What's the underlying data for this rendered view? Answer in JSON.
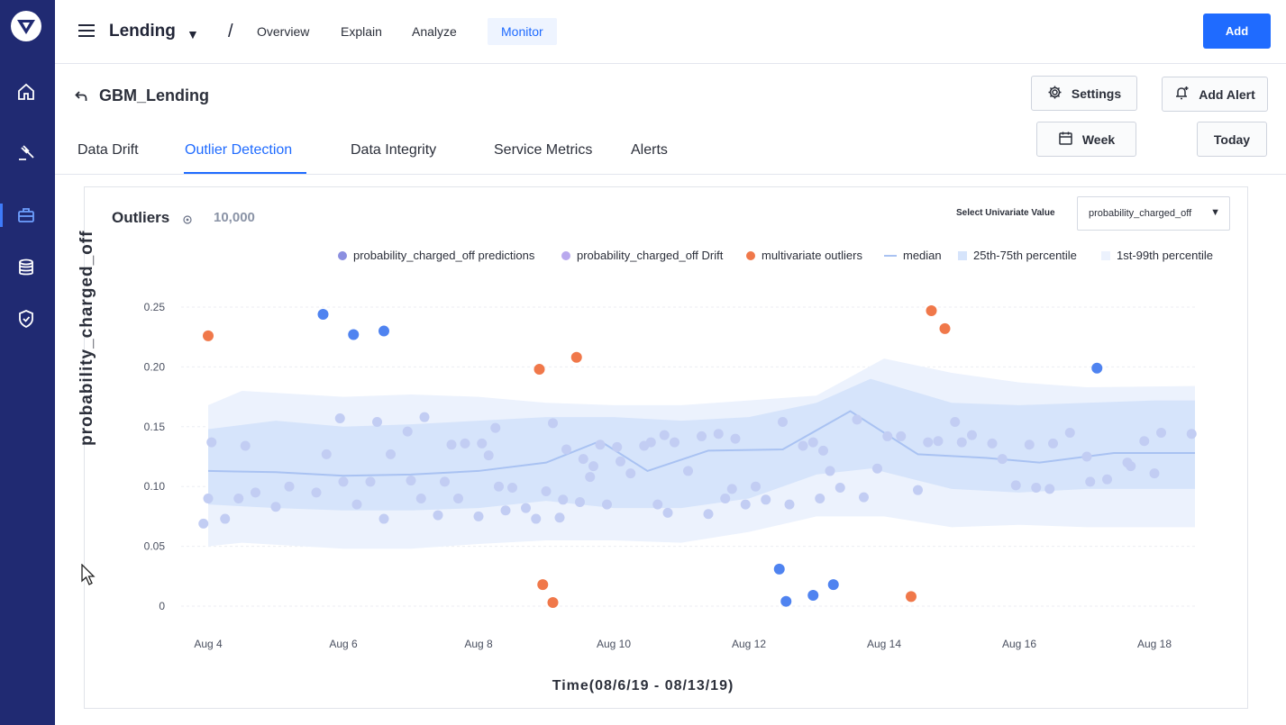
{
  "sidebar": {
    "logo": "logo-icon",
    "items": [
      {
        "icon": "home-icon",
        "active": false
      },
      {
        "icon": "gavel-icon",
        "active": false
      },
      {
        "icon": "briefcase-icon",
        "active": true
      },
      {
        "icon": "database-icon",
        "active": false
      },
      {
        "icon": "shield-icon",
        "active": false
      }
    ]
  },
  "header": {
    "project": "Lending",
    "separator": "/",
    "nav": [
      "Overview",
      "Explain",
      "Analyze",
      "Monitor"
    ],
    "active_nav": "Monitor",
    "add_label": "Add"
  },
  "model": {
    "title": "GBM_Lending",
    "settings_label": "Settings",
    "add_alert_label": "Add Alert",
    "week_label": "Week",
    "today_label": "Today"
  },
  "tabs": [
    "Data Drift",
    "Outlier Detection",
    "Data Integrity",
    "Service Metrics",
    "Alerts"
  ],
  "active_tab": "Outlier Detection",
  "panel": {
    "title": "Outliers",
    "count": "10,000",
    "select_label": "Select Univariate Value",
    "select_value": "probability_charged_off"
  },
  "colors": {
    "accent": "#1f6bff",
    "sidebar": "#202a72",
    "predictions": "#c2cdf3",
    "drift": "#4f83f0",
    "multivariate": "#f0784a",
    "median": "#a9c2f2",
    "band_25_75": "#d6e4fb",
    "band_1_99": "#ecf2fd"
  },
  "chart_data": {
    "type": "scatter",
    "xlabel": "Time(08/6/19 - 08/13/19)",
    "ylabel": "probability_charged_off",
    "ylim": [
      0,
      0.25
    ],
    "yticks": [
      0,
      0.05,
      0.1,
      0.15,
      0.2,
      0.25
    ],
    "ytick_labels": [
      "0",
      "0.05",
      "0.10",
      "0.15",
      "0.20",
      "0.25"
    ],
    "xlim": [
      3.6,
      18.6
    ],
    "xticks": [
      4,
      6,
      8,
      10,
      12,
      14,
      16,
      18
    ],
    "xtick_labels": [
      "Aug 4",
      "Aug 6",
      "Aug 8",
      "Aug 10",
      "Aug 12",
      "Aug 14",
      "Aug 16",
      "Aug 18"
    ],
    "legend": [
      {
        "name": "probability_charged_off predictions",
        "kind": "dot",
        "color": "#8b8fe0"
      },
      {
        "name": "probability_charged_off Drift",
        "kind": "dot",
        "color": "#b9a9ee"
      },
      {
        "name": "multivariate outliers",
        "kind": "dot",
        "color": "#f0784a"
      },
      {
        "name": "median",
        "kind": "line",
        "color": "#a9c2f2"
      },
      {
        "name": "25th-75th percentile",
        "kind": "band",
        "color": "#d6e4fb"
      },
      {
        "name": "1st-99th percentile",
        "kind": "band",
        "color": "#ecf2fd"
      }
    ],
    "median": [
      [
        4,
        0.113
      ],
      [
        5,
        0.112
      ],
      [
        6,
        0.109
      ],
      [
        7,
        0.11
      ],
      [
        8,
        0.113
      ],
      [
        9,
        0.12
      ],
      [
        9.8,
        0.138
      ],
      [
        10.5,
        0.113
      ],
      [
        11.4,
        0.13
      ],
      [
        12.5,
        0.131
      ],
      [
        13.5,
        0.163
      ],
      [
        14.5,
        0.127
      ],
      [
        15.5,
        0.124
      ],
      [
        16.3,
        0.12
      ],
      [
        17.4,
        0.128
      ],
      [
        18.6,
        0.128
      ]
    ],
    "band_25_75": [
      [
        4,
        0.148,
        0.085
      ],
      [
        5,
        0.155,
        0.082
      ],
      [
        6,
        0.15,
        0.08
      ],
      [
        7,
        0.152,
        0.08
      ],
      [
        8,
        0.155,
        0.082
      ],
      [
        9,
        0.158,
        0.088
      ],
      [
        10,
        0.158,
        0.082
      ],
      [
        11,
        0.155,
        0.082
      ],
      [
        12,
        0.158,
        0.09
      ],
      [
        13,
        0.17,
        0.11
      ],
      [
        13.8,
        0.19,
        0.115
      ],
      [
        15,
        0.17,
        0.098
      ],
      [
        16,
        0.168,
        0.095
      ],
      [
        17,
        0.17,
        0.098
      ],
      [
        18,
        0.172,
        0.098
      ],
      [
        18.6,
        0.172,
        0.098
      ]
    ],
    "band_1_99": [
      [
        4,
        0.168,
        0.05
      ],
      [
        4.5,
        0.18,
        0.053
      ],
      [
        6,
        0.175,
        0.048
      ],
      [
        7,
        0.177,
        0.048
      ],
      [
        8,
        0.175,
        0.052
      ],
      [
        9,
        0.17,
        0.055
      ],
      [
        10,
        0.168,
        0.055
      ],
      [
        11,
        0.168,
        0.053
      ],
      [
        12,
        0.172,
        0.062
      ],
      [
        13,
        0.176,
        0.075
      ],
      [
        14,
        0.207,
        0.075
      ],
      [
        15,
        0.195,
        0.066
      ],
      [
        16,
        0.187,
        0.068
      ],
      [
        17,
        0.183,
        0.066
      ],
      [
        18.6,
        0.184,
        0.066
      ]
    ],
    "series": [
      {
        "name": "probability_charged_off predictions",
        "color": "#c2cdf3",
        "points": [
          [
            3.93,
            0.069
          ],
          [
            4,
            0.09
          ],
          [
            4.05,
            0.137
          ],
          [
            4.25,
            0.073
          ],
          [
            4.45,
            0.09
          ],
          [
            4.55,
            0.134
          ],
          [
            4.7,
            0.095
          ],
          [
            5,
            0.083
          ],
          [
            5.2,
            0.1
          ],
          [
            5.6,
            0.095
          ],
          [
            5.75,
            0.127
          ],
          [
            5.95,
            0.157
          ],
          [
            6,
            0.104
          ],
          [
            6.2,
            0.085
          ],
          [
            6.4,
            0.104
          ],
          [
            6.5,
            0.154
          ],
          [
            6.6,
            0.073
          ],
          [
            6.7,
            0.127
          ],
          [
            6.95,
            0.146
          ],
          [
            7,
            0.105
          ],
          [
            7.15,
            0.09
          ],
          [
            7.2,
            0.158
          ],
          [
            7.4,
            0.076
          ],
          [
            7.5,
            0.104
          ],
          [
            7.6,
            0.135
          ],
          [
            7.7,
            0.09
          ],
          [
            7.8,
            0.136
          ],
          [
            8,
            0.075
          ],
          [
            8.05,
            0.136
          ],
          [
            8.15,
            0.126
          ],
          [
            8.25,
            0.149
          ],
          [
            8.3,
            0.1
          ],
          [
            8.4,
            0.08
          ],
          [
            8.5,
            0.099
          ],
          [
            8.7,
            0.082
          ],
          [
            8.85,
            0.073
          ],
          [
            9,
            0.096
          ],
          [
            9.1,
            0.153
          ],
          [
            9.2,
            0.074
          ],
          [
            9.25,
            0.089
          ],
          [
            9.3,
            0.131
          ],
          [
            9.5,
            0.087
          ],
          [
            9.55,
            0.123
          ],
          [
            9.65,
            0.108
          ],
          [
            9.7,
            0.117
          ],
          [
            9.8,
            0.135
          ],
          [
            9.9,
            0.085
          ],
          [
            10.05,
            0.133
          ],
          [
            10.1,
            0.121
          ],
          [
            10.25,
            0.111
          ],
          [
            10.45,
            0.134
          ],
          [
            10.55,
            0.137
          ],
          [
            10.65,
            0.085
          ],
          [
            10.75,
            0.143
          ],
          [
            10.8,
            0.078
          ],
          [
            10.9,
            0.137
          ],
          [
            11.1,
            0.113
          ],
          [
            11.3,
            0.142
          ],
          [
            11.4,
            0.077
          ],
          [
            11.55,
            0.144
          ],
          [
            11.65,
            0.09
          ],
          [
            11.75,
            0.098
          ],
          [
            11.8,
            0.14
          ],
          [
            11.95,
            0.085
          ],
          [
            12.1,
            0.1
          ],
          [
            12.25,
            0.089
          ],
          [
            12.5,
            0.154
          ],
          [
            12.6,
            0.085
          ],
          [
            12.8,
            0.134
          ],
          [
            12.95,
            0.137
          ],
          [
            13.05,
            0.09
          ],
          [
            13.1,
            0.13
          ],
          [
            13.2,
            0.113
          ],
          [
            13.35,
            0.099
          ],
          [
            13.6,
            0.156
          ],
          [
            13.7,
            0.091
          ],
          [
            13.9,
            0.115
          ],
          [
            14.05,
            0.142
          ],
          [
            14.25,
            0.142
          ],
          [
            14.5,
            0.097
          ],
          [
            14.65,
            0.137
          ],
          [
            14.8,
            0.138
          ],
          [
            15.05,
            0.154
          ],
          [
            15.15,
            0.137
          ],
          [
            15.3,
            0.143
          ],
          [
            15.6,
            0.136
          ],
          [
            15.75,
            0.123
          ],
          [
            15.95,
            0.101
          ],
          [
            16.15,
            0.135
          ],
          [
            16.25,
            0.099
          ],
          [
            16.45,
            0.098
          ],
          [
            16.5,
            0.136
          ],
          [
            16.75,
            0.145
          ],
          [
            17.0,
            0.125
          ],
          [
            17.05,
            0.104
          ],
          [
            17.3,
            0.106
          ],
          [
            17.6,
            0.12
          ],
          [
            17.65,
            0.117
          ],
          [
            17.85,
            0.138
          ],
          [
            18.0,
            0.111
          ],
          [
            18.1,
            0.145
          ],
          [
            18.55,
            0.144
          ]
        ]
      },
      {
        "name": "probability_charged_off Drift",
        "color": "#4f83f0",
        "points": [
          [
            5.7,
            0.244
          ],
          [
            6.15,
            0.227
          ],
          [
            6.6,
            0.23
          ],
          [
            12.45,
            0.031
          ],
          [
            12.55,
            0.004
          ],
          [
            12.95,
            0.009
          ],
          [
            13.25,
            0.018
          ],
          [
            17.15,
            0.199
          ]
        ]
      },
      {
        "name": "multivariate outliers",
        "color": "#f0784a",
        "points": [
          [
            4.0,
            0.226
          ],
          [
            8.9,
            0.198
          ],
          [
            9.45,
            0.208
          ],
          [
            8.95,
            0.018
          ],
          [
            9.1,
            0.003
          ],
          [
            14.4,
            0.008
          ],
          [
            14.7,
            0.247
          ],
          [
            14.9,
            0.232
          ]
        ]
      }
    ]
  }
}
